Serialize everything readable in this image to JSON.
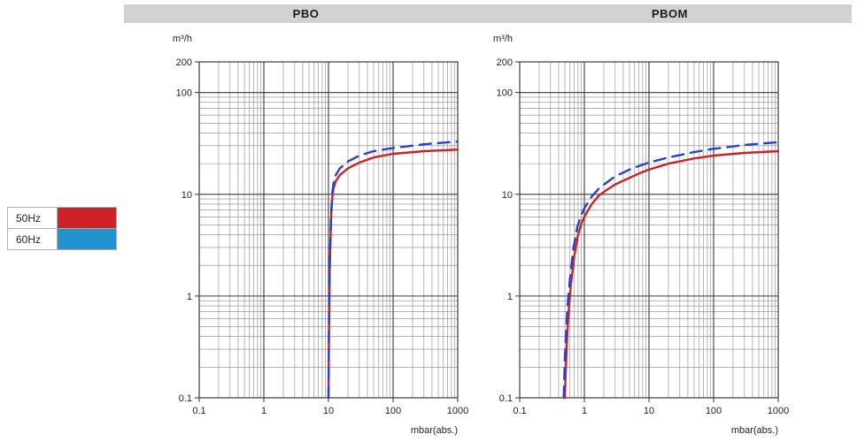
{
  "header": {
    "titles": [
      "PBO",
      "PBOM"
    ],
    "background": "#d2d2d2"
  },
  "legend": {
    "items": [
      {
        "label": "50Hz",
        "color": "#cf2127"
      },
      {
        "label": "60Hz",
        "color": "#2191d0"
      }
    ]
  },
  "chart_data": [
    {
      "type": "line",
      "title": "PBO",
      "ylabel": "m³/h",
      "xlabel": "mbar(abs.)",
      "xscale": "log",
      "yscale": "log",
      "xlim": [
        0.1,
        1000
      ],
      "ylim": [
        0.1,
        200
      ],
      "x_ticks": [
        "0.1",
        "1",
        "10",
        "100",
        "1000"
      ],
      "y_ticks": [
        "200",
        "100",
        "10",
        "1",
        "0.1"
      ],
      "grid": true,
      "legend_position": "left",
      "series": [
        {
          "name": "50Hz",
          "color": "#cf2127",
          "style": "solid",
          "points": [
            [
              10,
              0.1
            ],
            [
              10.2,
              0.5
            ],
            [
              10.5,
              2
            ],
            [
              11,
              6
            ],
            [
              11.5,
              9.5
            ],
            [
              12,
              11.5
            ],
            [
              13,
              13.5
            ],
            [
              15,
              15.5
            ],
            [
              20,
              18
            ],
            [
              30,
              20.5
            ],
            [
              50,
              23
            ],
            [
              100,
              25
            ],
            [
              300,
              26.5
            ],
            [
              1000,
              27.5
            ]
          ]
        },
        {
          "name": "60Hz",
          "color": "#2940cc",
          "style": "dashed",
          "points": [
            [
              10,
              0.1
            ],
            [
              10.2,
              0.6
            ],
            [
              10.5,
              2.2
            ],
            [
              11,
              6.5
            ],
            [
              11.5,
              10.5
            ],
            [
              12,
              13
            ],
            [
              13,
              15.5
            ],
            [
              15,
              18
            ],
            [
              20,
              21
            ],
            [
              30,
              24
            ],
            [
              50,
              26.5
            ],
            [
              100,
              28.5
            ],
            [
              300,
              31
            ],
            [
              1000,
              33
            ]
          ]
        }
      ]
    },
    {
      "type": "line",
      "title": "PBOM",
      "ylabel": "m³/h",
      "xlabel": "mbar(abs.)",
      "xscale": "log",
      "yscale": "log",
      "xlim": [
        0.1,
        1000
      ],
      "ylim": [
        0.1,
        200
      ],
      "x_ticks": [
        "0.1",
        "1",
        "10",
        "100",
        "1000"
      ],
      "y_ticks": [
        "200",
        "100",
        "10",
        "1",
        "0.1"
      ],
      "grid": true,
      "legend_position": "left",
      "series": [
        {
          "name": "50Hz",
          "color": "#cf2127",
          "style": "solid",
          "points": [
            [
              0.5,
              0.1
            ],
            [
              0.53,
              0.3
            ],
            [
              0.57,
              0.7
            ],
            [
              0.62,
              1.3
            ],
            [
              0.7,
              2.5
            ],
            [
              0.8,
              4
            ],
            [
              0.9,
              5.2
            ],
            [
              1,
              6
            ],
            [
              1.3,
              8
            ],
            [
              1.7,
              9.8
            ],
            [
              2.2,
              11
            ],
            [
              3,
              12.5
            ],
            [
              5,
              14.5
            ],
            [
              7,
              16
            ],
            [
              10,
              17.5
            ],
            [
              20,
              20
            ],
            [
              50,
              22.5
            ],
            [
              100,
              24
            ],
            [
              300,
              25.5
            ],
            [
              1000,
              26.5
            ]
          ]
        },
        {
          "name": "60Hz",
          "color": "#2940cc",
          "style": "dashed",
          "points": [
            [
              0.48,
              0.1
            ],
            [
              0.5,
              0.25
            ],
            [
              0.55,
              0.8
            ],
            [
              0.6,
              1.5
            ],
            [
              0.68,
              3
            ],
            [
              0.78,
              4.8
            ],
            [
              0.9,
              6.3
            ],
            [
              1,
              7.3
            ],
            [
              1.3,
              9.5
            ],
            [
              1.7,
              11.5
            ],
            [
              2.2,
              13
            ],
            [
              3,
              15
            ],
            [
              5,
              17.5
            ],
            [
              7,
              19
            ],
            [
              10,
              20.5
            ],
            [
              20,
              23
            ],
            [
              50,
              26
            ],
            [
              100,
              28
            ],
            [
              300,
              30.5
            ],
            [
              1000,
              32.5
            ]
          ]
        }
      ]
    }
  ]
}
